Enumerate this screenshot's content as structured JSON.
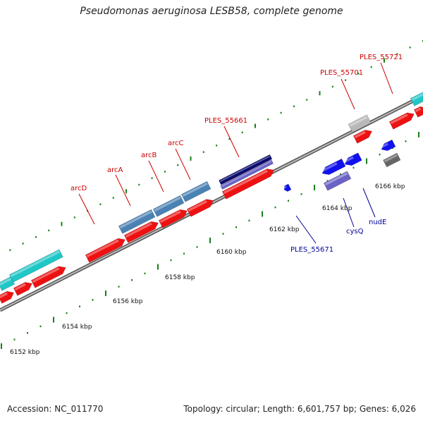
{
  "title": "Pseudomonas aeruginosa LESB58, complete genome",
  "footer": {
    "accession": "Accession: NC_011770",
    "summary": "Topology: circular; Length: 6,601,757 bp; Genes: 6,026"
  },
  "colors": {
    "backbone": "#8a8a8a",
    "tick": "#1a7f1a",
    "forward_cds": "#ee1111",
    "forward_label": "#cc0000",
    "reverse_cds": "#1111ee",
    "reverse_label": "#000099",
    "steelblue_gene": "#4a82b4",
    "navy_gene": "#0a0a6e",
    "purple_gene": "#6a62c6",
    "cyan_gene": "#1fc7c7",
    "grey_gene": "#b8b8b8",
    "dark_grey_gene": "#666666"
  },
  "kbp_labels": [
    "6152 kbp",
    "6154 kbp",
    "6156 kbp",
    "6158 kbp",
    "6160 kbp",
    "6162 kbp",
    "6164 kbp",
    "6166 kbp"
  ],
  "gene_labels": {
    "forward": [
      "arcD",
      "arcA",
      "arcB",
      "arcC",
      "PLES_55661",
      "PLES_55701",
      "PLES_55721"
    ],
    "reverse": [
      "PLES_55671",
      "cysQ",
      "nudE"
    ]
  }
}
